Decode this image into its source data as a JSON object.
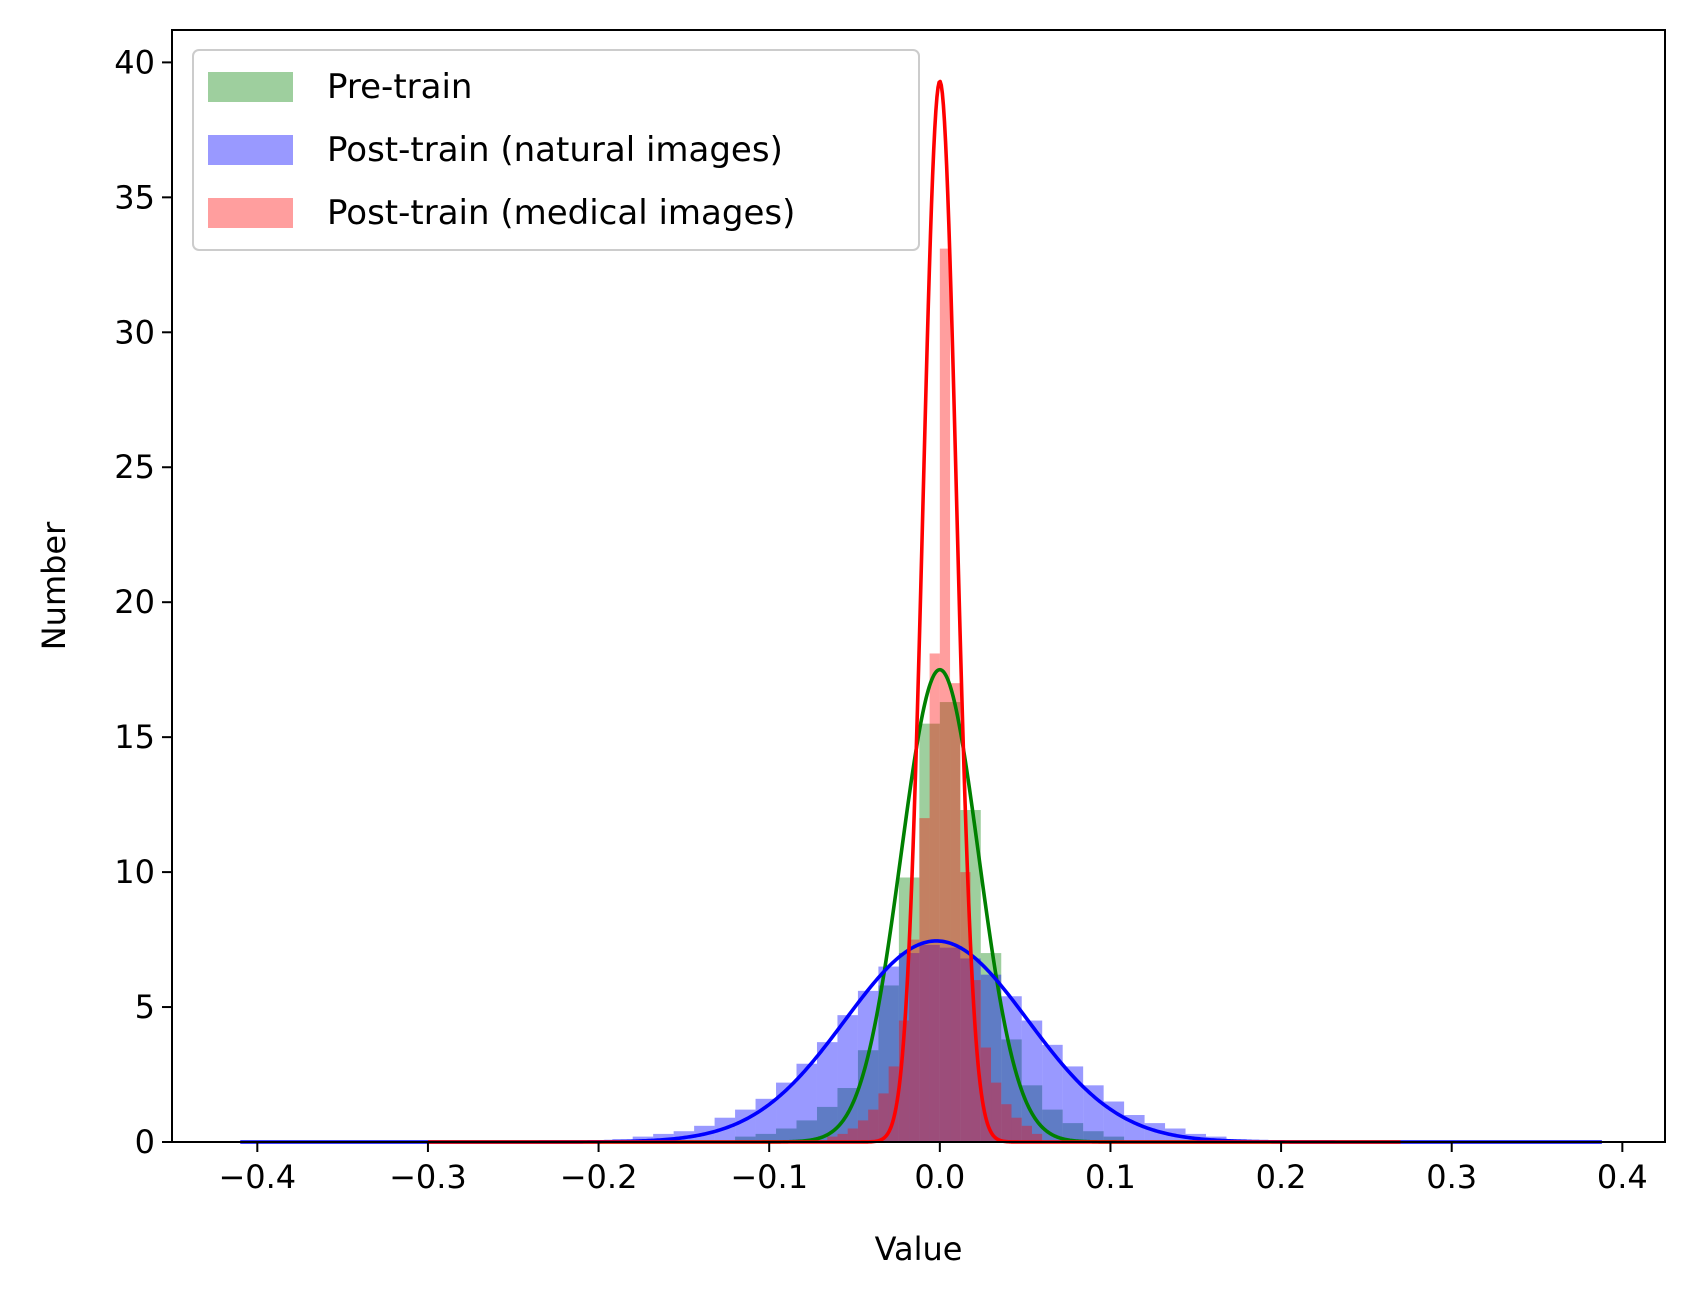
{
  "chart_data": {
    "type": "bar",
    "title": "",
    "xlabel": "Value",
    "ylabel": "Number",
    "xlim": [
      -0.45,
      0.425
    ],
    "ylim": [
      0,
      41.2
    ],
    "xticks": [
      -0.4,
      -0.3,
      -0.2,
      -0.1,
      0.0,
      0.1,
      0.2,
      0.3,
      0.4
    ],
    "xtick_labels": [
      "−0.4",
      "−0.3",
      "−0.2",
      "−0.1",
      "0.0",
      "0.1",
      "0.2",
      "0.3",
      "0.4"
    ],
    "yticks": [
      0,
      5,
      10,
      15,
      20,
      25,
      30,
      35,
      40
    ],
    "ytick_labels": [
      "0",
      "5",
      "10",
      "15",
      "20",
      "25",
      "30",
      "35",
      "40"
    ],
    "grid": false,
    "legend": "top-left",
    "series": [
      {
        "name": "Pre-train",
        "hist_color": "#008000",
        "hist_opacity": 0.38,
        "curve_color": "#008000",
        "bin_width": 0.012,
        "bins": [
          [
            -0.114,
            0.2
          ],
          [
            -0.102,
            0.3
          ],
          [
            -0.09,
            0.5
          ],
          [
            -0.078,
            0.8
          ],
          [
            -0.066,
            1.3
          ],
          [
            -0.054,
            2.0
          ],
          [
            -0.042,
            3.4
          ],
          [
            -0.03,
            5.8
          ],
          [
            -0.018,
            9.8
          ],
          [
            -0.006,
            15.5
          ],
          [
            0.006,
            16.3
          ],
          [
            0.018,
            12.3
          ],
          [
            0.03,
            7.0
          ],
          [
            0.042,
            3.8
          ],
          [
            0.054,
            2.1
          ],
          [
            0.066,
            1.2
          ],
          [
            0.078,
            0.7
          ],
          [
            0.09,
            0.4
          ],
          [
            0.102,
            0.2
          ]
        ],
        "curve": {
          "mu": 0.0,
          "peak": 17.5,
          "sigma": 0.0228,
          "x_range": [
            -0.3,
            0.27
          ]
        }
      },
      {
        "name": "Post-train (natural images)",
        "hist_color": "#0000ff",
        "hist_opacity": 0.4,
        "curve_color": "#0000ff",
        "bin_width": 0.012,
        "bins": [
          [
            -0.186,
            0.1
          ],
          [
            -0.174,
            0.2
          ],
          [
            -0.162,
            0.3
          ],
          [
            -0.15,
            0.4
          ],
          [
            -0.138,
            0.6
          ],
          [
            -0.126,
            0.9
          ],
          [
            -0.114,
            1.2
          ],
          [
            -0.102,
            1.6
          ],
          [
            -0.09,
            2.2
          ],
          [
            -0.078,
            2.9
          ],
          [
            -0.066,
            3.7
          ],
          [
            -0.054,
            4.7
          ],
          [
            -0.042,
            5.6
          ],
          [
            -0.03,
            6.5
          ],
          [
            -0.018,
            7.0
          ],
          [
            -0.006,
            7.3
          ],
          [
            0.006,
            7.2
          ],
          [
            0.018,
            6.8
          ],
          [
            0.03,
            6.2
          ],
          [
            0.042,
            5.4
          ],
          [
            0.054,
            4.5
          ],
          [
            0.066,
            3.6
          ],
          [
            0.078,
            2.8
          ],
          [
            0.09,
            2.1
          ],
          [
            0.102,
            1.5
          ],
          [
            0.114,
            1.0
          ],
          [
            0.126,
            0.7
          ],
          [
            0.138,
            0.5
          ],
          [
            0.15,
            0.3
          ],
          [
            0.162,
            0.2
          ],
          [
            0.174,
            0.1
          ]
        ],
        "curve": {
          "mu": -0.002,
          "peak": 7.45,
          "sigma": 0.0535,
          "x_range": [
            -0.41,
            0.388
          ]
        }
      },
      {
        "name": "Post-train (medical images)",
        "hist_color": "#ff0000",
        "hist_opacity": 0.38,
        "curve_color": "#ff0000",
        "bin_width": 0.006,
        "bins": [
          [
            -0.063,
            0.2
          ],
          [
            -0.057,
            0.3
          ],
          [
            -0.051,
            0.5
          ],
          [
            -0.045,
            0.8
          ],
          [
            -0.039,
            1.2
          ],
          [
            -0.033,
            1.8
          ],
          [
            -0.027,
            2.8
          ],
          [
            -0.021,
            4.5
          ],
          [
            -0.015,
            7.5
          ],
          [
            -0.009,
            12.0
          ],
          [
            -0.003,
            18.1
          ],
          [
            0.003,
            33.1
          ],
          [
            0.009,
            17.0
          ],
          [
            0.015,
            10.0
          ],
          [
            0.021,
            6.0
          ],
          [
            0.027,
            3.5
          ],
          [
            0.033,
            2.2
          ],
          [
            0.039,
            1.4
          ],
          [
            0.045,
            0.9
          ],
          [
            0.051,
            0.6
          ],
          [
            0.057,
            0.3
          ]
        ],
        "curve": {
          "mu": 0.0,
          "peak": 39.3,
          "sigma": 0.0098,
          "x_range": [
            -0.3,
            0.27
          ]
        }
      }
    ]
  }
}
